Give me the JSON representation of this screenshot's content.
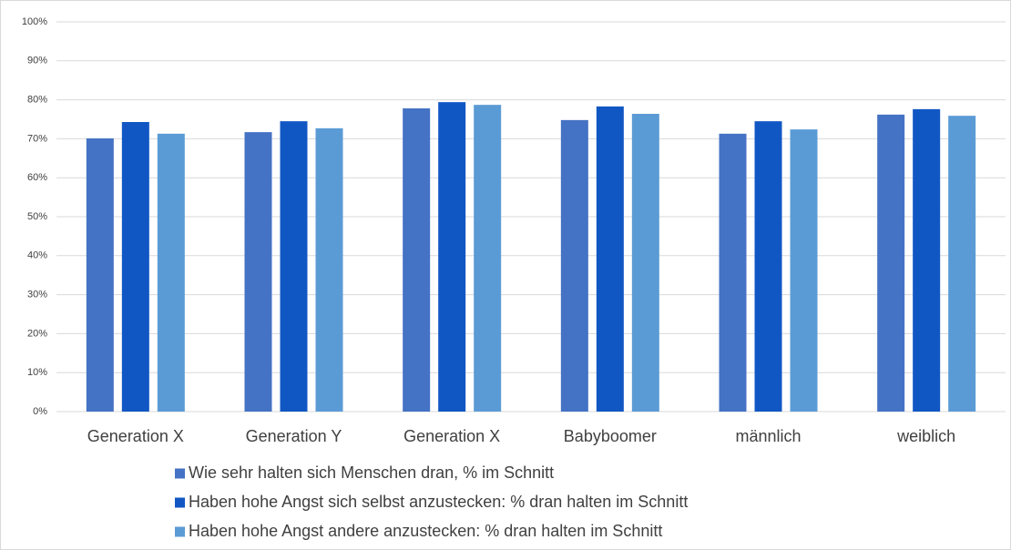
{
  "chart_data": {
    "type": "bar",
    "categories": [
      "Generation X",
      "Generation Y",
      "Generation X",
      "Babyboomer",
      "männlich",
      "weiblich"
    ],
    "series": [
      {
        "name": "Wie sehr halten sich Menschen dran, % im Schnitt",
        "color": "#4472c4",
        "values": [
          70.1,
          71.7,
          77.8,
          74.8,
          71.3,
          76.2
        ]
      },
      {
        "name": "Haben hohe Angst sich selbst anzustecken: % dran halten im Schnitt",
        "color": "#1157c4",
        "values": [
          74.3,
          74.5,
          79.4,
          78.3,
          74.5,
          77.6
        ]
      },
      {
        "name": "Haben hohe Angst andere anzustecken: % dran halten im Schnitt",
        "color": "#5b9bd5",
        "values": [
          71.3,
          72.7,
          78.7,
          76.4,
          72.4,
          75.9
        ]
      }
    ],
    "ylim": [
      0,
      100
    ],
    "yticks": [
      {
        "value": 0,
        "label": "0%"
      },
      {
        "value": 10,
        "label": "10%"
      },
      {
        "value": 20,
        "label": "20%"
      },
      {
        "value": 30,
        "label": "30%"
      },
      {
        "value": 40,
        "label": "40%"
      },
      {
        "value": 50,
        "label": "50%"
      },
      {
        "value": 60,
        "label": "60%"
      },
      {
        "value": 70,
        "label": "70%"
      },
      {
        "value": 80,
        "label": "80%"
      },
      {
        "value": 90,
        "label": "90%"
      },
      {
        "value": 100,
        "label": "100%"
      }
    ],
    "grid": true,
    "legend": "bottom"
  }
}
